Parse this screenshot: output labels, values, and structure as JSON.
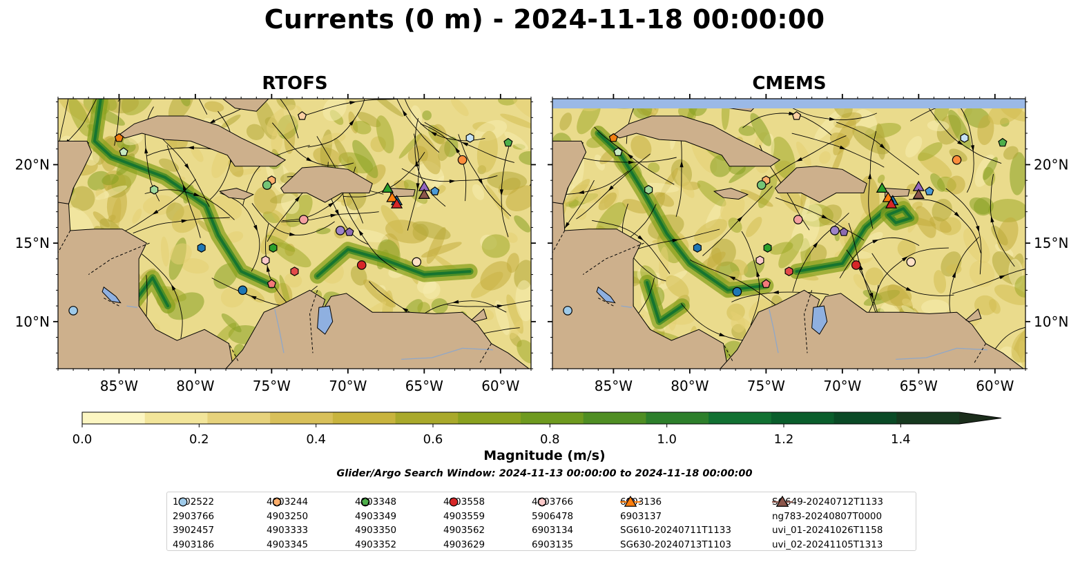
{
  "title": "Currents (0 m) - 2024-11-18 00:00:00",
  "panels": [
    {
      "title": "RTOFS"
    },
    {
      "title": "CMEMS"
    }
  ],
  "axes": {
    "x_ticks": [
      "85°W",
      "80°W",
      "75°W",
      "70°W",
      "65°W",
      "60°W"
    ],
    "y_ticks": [
      "20°N",
      "15°N",
      "10°N"
    ],
    "lon_range": [
      -89,
      -58
    ],
    "lat_range": [
      7,
      24.2
    ]
  },
  "colorbar": {
    "title": "Magnitude (m/s)",
    "ticks": [
      "0.0",
      "0.2",
      "0.4",
      "0.6",
      "0.8",
      "1.0",
      "1.2",
      "1.4"
    ],
    "range": [
      0,
      1.5
    ],
    "extend": "max",
    "colors": [
      "#fcf6c2",
      "#f2e59a",
      "#e6d27c",
      "#d8c05a",
      "#c8b43e",
      "#a9a92b",
      "#8aa11f",
      "#6e9a1f",
      "#4f8e23",
      "#2d7f2b",
      "#117132",
      "#0a5e2c",
      "#0a4a26",
      "#16391f",
      "#1b2d1b"
    ]
  },
  "search_window": "Glider/Argo Search Window: 2024-11-13 00:00:00 to 2024-11-18 00:00:00",
  "legend": {
    "columns": [
      [
        {
          "label": "1902522",
          "shape": "circle",
          "color": "#1f77b4"
        },
        {
          "label": "2903766",
          "shape": "hexagon",
          "color": "#1f77b4"
        },
        {
          "label": "3902457",
          "shape": "pentagon",
          "color": "#4c9bd6"
        },
        {
          "label": "4903186",
          "shape": "circle",
          "color": "#9ecae9"
        }
      ],
      [
        {
          "label": "4903244",
          "shape": "hexagon",
          "color": "#c6e2f5"
        },
        {
          "label": "4903250",
          "shape": "pentagon",
          "color": "#f07f13"
        },
        {
          "label": "4903333",
          "shape": "circle",
          "color": "#fd8d3c"
        },
        {
          "label": "4903345",
          "shape": "hexagon",
          "color": "#fdae6b"
        }
      ],
      [
        {
          "label": "4903348",
          "shape": "pentagon",
          "color": "#fdd0a2"
        },
        {
          "label": "4903349",
          "shape": "circle",
          "color": "#fde0c5"
        },
        {
          "label": "4903350",
          "shape": "hexagon",
          "color": "#2ca02c"
        },
        {
          "label": "4903352",
          "shape": "pentagon",
          "color": "#4daf4a"
        }
      ],
      [
        {
          "label": "4903558",
          "shape": "circle",
          "color": "#74c476"
        },
        {
          "label": "4903559",
          "shape": "hexagon",
          "color": "#a1d99b"
        },
        {
          "label": "4903562",
          "shape": "pentagon",
          "color": "#c7e9c0"
        },
        {
          "label": "4903629",
          "shape": "circle",
          "color": "#d62728"
        }
      ],
      [
        {
          "label": "4903766",
          "shape": "hexagon",
          "color": "#e34a4a"
        },
        {
          "label": "5906478",
          "shape": "pentagon",
          "color": "#f47a7a"
        },
        {
          "label": "6903134",
          "shape": "circle",
          "color": "#f4a0a0"
        },
        {
          "label": "6903135",
          "shape": "hexagon",
          "color": "#fbc9c9"
        }
      ],
      [
        {
          "label": "6903136",
          "shape": "pentagon",
          "color": "#8c6bb1"
        },
        {
          "label": "6903137",
          "shape": "circle",
          "color": "#9e83c8"
        },
        {
          "label": "SG610-20240711T1133",
          "shape": "triangle",
          "color": "#1f77b4"
        },
        {
          "label": "SG630-20240713T1103",
          "shape": "triangle",
          "color": "#ff7f0e"
        }
      ],
      [
        {
          "label": "SG649-20240712T1133",
          "shape": "triangle",
          "color": "#2ca02c"
        },
        {
          "label": "ng783-20240807T0000",
          "shape": "triangle",
          "color": "#d62728"
        },
        {
          "label": "uvi_01-20241026T1158",
          "shape": "triangle",
          "color": "#9467bd"
        },
        {
          "label": "uvi_02-20241105T1313",
          "shape": "triangle",
          "color": "#8c564b"
        }
      ]
    ]
  },
  "platforms": [
    {
      "id": "1902522",
      "shape": "circle",
      "color": "#1f77b4",
      "rtofs": [
        -76.9,
        12.0
      ],
      "cmems": [
        -76.9,
        11.9
      ]
    },
    {
      "id": "2903766",
      "shape": "hexagon",
      "color": "#1f77b4",
      "rtofs": [
        -79.6,
        14.7
      ],
      "cmems": [
        -79.5,
        14.7
      ]
    },
    {
      "id": "3902457",
      "shape": "pentagon",
      "color": "#4c9bd6",
      "rtofs": [
        -64.3,
        18.3
      ],
      "cmems": [
        -64.3,
        18.3
      ]
    },
    {
      "id": "4903186",
      "shape": "circle",
      "color": "#9ecae9",
      "rtofs": [
        -88.0,
        10.7
      ],
      "cmems": [
        -88.0,
        10.7
      ]
    },
    {
      "id": "4903244",
      "shape": "hexagon",
      "color": "#c6e2f5",
      "rtofs": [
        -62.0,
        21.7
      ],
      "cmems": [
        -62.0,
        21.7
      ]
    },
    {
      "id": "4903250",
      "shape": "pentagon",
      "color": "#f07f13",
      "rtofs": [
        -85.0,
        21.7
      ],
      "cmems": [
        -85.0,
        21.7
      ]
    },
    {
      "id": "4903333",
      "shape": "circle",
      "color": "#fd8d3c",
      "rtofs": [
        -62.5,
        20.3
      ],
      "cmems": [
        -62.5,
        20.3
      ]
    },
    {
      "id": "4903345",
      "shape": "hexagon",
      "color": "#fdae6b",
      "rtofs": [
        -75.0,
        19.0
      ],
      "cmems": [
        -75.0,
        19.0
      ]
    },
    {
      "id": "4903348",
      "shape": "pentagon",
      "color": "#fdd0a2",
      "rtofs": [
        -73.0,
        23.1
      ],
      "cmems": [
        -73.0,
        23.1
      ]
    },
    {
      "id": "4903349",
      "shape": "circle",
      "color": "#fde0c5",
      "rtofs": [
        -65.5,
        13.8
      ],
      "cmems": [
        -65.5,
        13.8
      ]
    },
    {
      "id": "4903350",
      "shape": "hexagon",
      "color": "#2ca02c",
      "rtofs": [
        -74.9,
        14.7
      ],
      "cmems": [
        -74.9,
        14.7
      ]
    },
    {
      "id": "4903352",
      "shape": "pentagon",
      "color": "#4daf4a",
      "rtofs": [
        -59.5,
        21.4
      ],
      "cmems": [
        -59.5,
        21.4
      ]
    },
    {
      "id": "4903558",
      "shape": "circle",
      "color": "#74c476",
      "rtofs": [
        -75.3,
        18.7
      ],
      "cmems": [
        -75.3,
        18.7
      ]
    },
    {
      "id": "4903559",
      "shape": "hexagon",
      "color": "#a1d99b",
      "rtofs": [
        -82.7,
        18.4
      ],
      "cmems": [
        -82.7,
        18.4
      ]
    },
    {
      "id": "4903562",
      "shape": "pentagon",
      "color": "#c7e9c0",
      "rtofs": [
        -84.7,
        20.8
      ],
      "cmems": [
        -84.7,
        20.8
      ]
    },
    {
      "id": "4903629",
      "shape": "circle",
      "color": "#d62728",
      "rtofs": [
        -69.1,
        13.6
      ],
      "cmems": [
        -69.1,
        13.6
      ]
    },
    {
      "id": "4903766",
      "shape": "hexagon",
      "color": "#e34a4a",
      "rtofs": [
        -73.5,
        13.2
      ],
      "cmems": [
        -73.5,
        13.2
      ]
    },
    {
      "id": "5906478",
      "shape": "pentagon",
      "color": "#f47a7a",
      "rtofs": [
        -75.0,
        12.4
      ],
      "cmems": [
        -75.0,
        12.4
      ]
    },
    {
      "id": "6903134",
      "shape": "circle",
      "color": "#f4a0a0",
      "rtofs": [
        -72.9,
        16.5
      ],
      "cmems": [
        -72.9,
        16.5
      ]
    },
    {
      "id": "6903135",
      "shape": "hexagon",
      "color": "#fbc9c9",
      "rtofs": [
        -75.4,
        13.9
      ],
      "cmems": [
        -75.4,
        13.9
      ]
    },
    {
      "id": "6903136",
      "shape": "pentagon",
      "color": "#8c6bb1",
      "rtofs": [
        -69.9,
        15.7
      ],
      "cmems": [
        -69.9,
        15.7
      ]
    },
    {
      "id": "6903137",
      "shape": "circle",
      "color": "#9e83c8",
      "rtofs": [
        -70.5,
        15.8
      ],
      "cmems": [
        -70.5,
        15.8
      ]
    },
    {
      "id": "SG610-20240711T1133",
      "shape": "triangle",
      "color": "#1f77b4",
      "rtofs": [
        -66.8,
        17.7
      ],
      "cmems": [
        -66.7,
        17.7
      ]
    },
    {
      "id": "SG630-20240713T1103",
      "shape": "triangle",
      "color": "#ff7f0e",
      "rtofs": [
        -67.1,
        17.9
      ],
      "cmems": [
        -67.0,
        17.9
      ]
    },
    {
      "id": "SG649-20240712T1133",
      "shape": "triangle",
      "color": "#2ca02c",
      "rtofs": [
        -67.4,
        18.5
      ],
      "cmems": [
        -67.4,
        18.5
      ]
    },
    {
      "id": "ng783-20240807T0000",
      "shape": "triangle",
      "color": "#d62728",
      "rtofs": [
        -66.8,
        17.5
      ],
      "cmems": [
        -66.8,
        17.5
      ]
    },
    {
      "id": "uvi_01-20241026T1158",
      "shape": "triangle",
      "color": "#9467bd",
      "rtofs": [
        -65.0,
        18.6
      ],
      "cmems": [
        -65.0,
        18.6
      ]
    },
    {
      "id": "uvi_02-20241105T1313",
      "shape": "triangle",
      "color": "#8c564b",
      "rtofs": [
        -65.0,
        18.1
      ],
      "cmems": [
        -65.0,
        18.1
      ]
    }
  ]
}
